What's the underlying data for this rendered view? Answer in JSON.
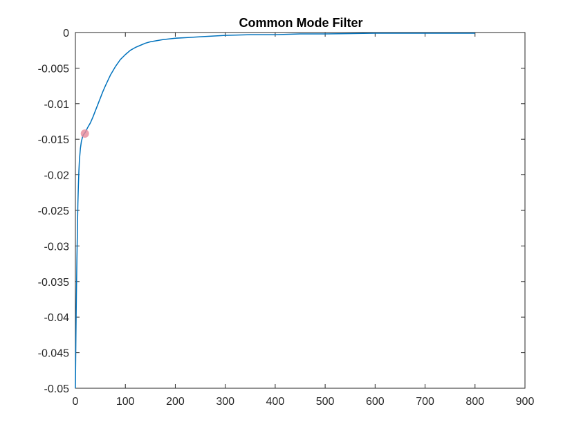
{
  "chart_data": {
    "type": "line",
    "title": "Common Mode Filter",
    "xlabel": "",
    "ylabel": "",
    "xlim": [
      0,
      900
    ],
    "ylim": [
      -0.05,
      0
    ],
    "grid": false,
    "x_ticks": [
      0,
      100,
      200,
      300,
      400,
      500,
      600,
      700,
      800,
      900
    ],
    "x_tick_labels": [
      "0",
      "100",
      "200",
      "300",
      "400",
      "500",
      "600",
      "700",
      "800",
      "900"
    ],
    "y_ticks": [
      0,
      -0.005,
      -0.01,
      -0.015,
      -0.02,
      -0.025,
      -0.03,
      -0.035,
      -0.04,
      -0.045,
      -0.05
    ],
    "y_tick_labels": [
      "0",
      "-0.005",
      "-0.01",
      "-0.015",
      "-0.02",
      "-0.025",
      "-0.03",
      "-0.035",
      "-0.04",
      "-0.045",
      "-0.05"
    ],
    "series": [
      {
        "color": "#0072bd",
        "x": [
          0,
          1,
          2,
          3,
          4,
          5,
          6,
          7,
          8,
          10,
          12,
          15,
          18,
          20,
          25,
          30,
          35,
          40,
          45,
          50,
          55,
          60,
          70,
          80,
          90,
          100,
          110,
          120,
          130,
          140,
          150,
          175,
          200,
          225,
          250,
          300,
          350,
          400,
          450,
          500,
          600,
          700,
          800
        ],
        "y": [
          -0.05,
          -0.043,
          -0.037,
          -0.032,
          -0.028,
          -0.024,
          -0.0215,
          -0.0195,
          -0.018,
          -0.0163,
          -0.0153,
          -0.0145,
          -0.0142,
          -0.014,
          -0.0133,
          -0.0127,
          -0.0119,
          -0.011,
          -0.0101,
          -0.0092,
          -0.0083,
          -0.0075,
          -0.006,
          -0.0048,
          -0.0038,
          -0.0031,
          -0.0025,
          -0.0021,
          -0.0018,
          -0.0015,
          -0.0013,
          -0.001,
          -0.0008,
          -0.0007,
          -0.0006,
          -0.0004,
          -0.0003,
          -0.0003,
          -0.0002,
          -0.0002,
          -0.0001,
          -0.0001,
          -0.0001
        ]
      }
    ],
    "highlight_point": {
      "x": 19,
      "y": -0.0142,
      "color": "#e88a9a"
    }
  }
}
